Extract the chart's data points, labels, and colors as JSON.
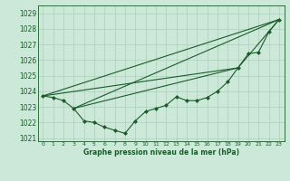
{
  "bg_color": "#cce8d8",
  "grid_color": "#aacfba",
  "line_color": "#1a5c2a",
  "title": "Graphe pression niveau de la mer (hPa)",
  "xlim": [
    -0.5,
    23.5
  ],
  "ylim": [
    1020.8,
    1029.5
  ],
  "yticks": [
    1021,
    1022,
    1023,
    1024,
    1025,
    1026,
    1027,
    1028,
    1029
  ],
  "xticks": [
    0,
    1,
    2,
    3,
    4,
    5,
    6,
    7,
    8,
    9,
    10,
    11,
    12,
    13,
    14,
    15,
    16,
    17,
    18,
    19,
    20,
    21,
    22,
    23
  ],
  "line1": {
    "x": [
      0,
      1,
      2,
      3,
      4,
      5,
      6,
      7,
      8,
      9,
      10,
      11,
      12,
      13,
      14,
      15,
      16,
      17,
      18,
      19,
      20,
      21,
      22,
      23
    ],
    "y": [
      1023.7,
      1023.6,
      1023.4,
      1022.9,
      1022.1,
      1022.0,
      1021.7,
      1021.5,
      1021.3,
      1022.1,
      1022.7,
      1022.9,
      1023.1,
      1023.65,
      1023.4,
      1023.4,
      1023.6,
      1024.0,
      1024.6,
      1025.5,
      1026.4,
      1026.5,
      1027.8,
      1028.6
    ]
  },
  "line2": {
    "x": [
      0,
      23
    ],
    "y": [
      1023.7,
      1028.6
    ]
  },
  "line3": {
    "x": [
      0,
      19,
      23
    ],
    "y": [
      1023.7,
      1025.5,
      1028.6
    ]
  },
  "line4": {
    "x": [
      3,
      19
    ],
    "y": [
      1022.9,
      1025.5
    ]
  },
  "line5": {
    "x": [
      3,
      23
    ],
    "y": [
      1022.9,
      1028.6
    ]
  }
}
